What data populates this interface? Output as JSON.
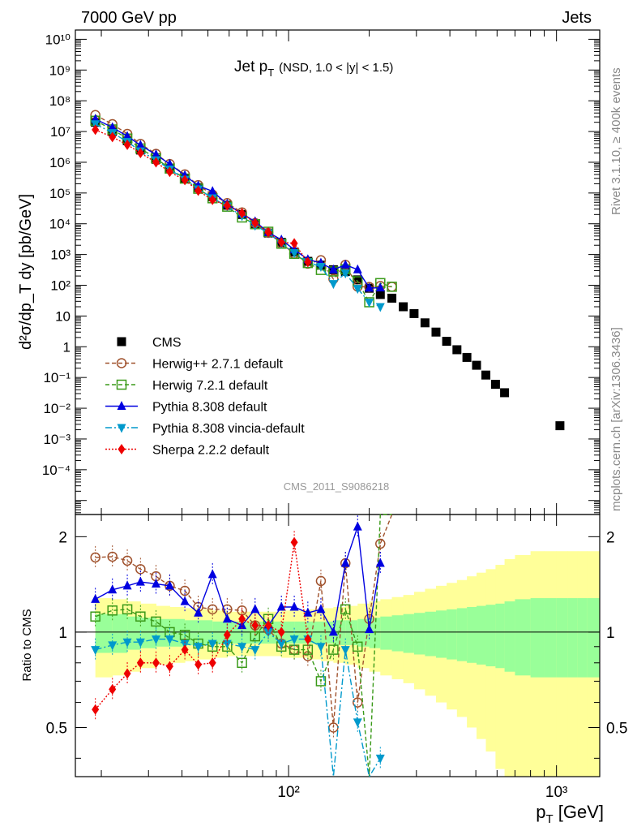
{
  "header": {
    "left": "7000 GeV pp",
    "right": "Jets"
  },
  "side_labels": {
    "rivet": "Rivet 3.1.10, ≥ 400k events",
    "mcplots": "mcplots.cern.ch [arXiv:1306.3436]"
  },
  "chart_data": {
    "type": "scatter",
    "title": "Jet p_T (NSD, 1.0 < |y| < 1.5)",
    "title_main": "Jet p",
    "title_sub": "T",
    "title_tail": "(NSD, 1.0 < |y| < 1.5)",
    "watermark": "CMS_2011_S9086218",
    "xlabel": "p_T [GeV]",
    "xlabel_main": "p",
    "xlabel_sub": "T",
    "xlabel_unit": " [GeV]",
    "ylabel": "d²σ/dp_T dy [pb/GeV]",
    "ratio_ylabel": "Ratio to CMS",
    "xscale": "log",
    "yscale": "log",
    "xlim": [
      16,
      1450
    ],
    "ylim": [
      3.5e-06,
      20000000000
    ],
    "ratio_ylim": [
      0.35,
      2.35
    ],
    "x_tick_labels": [
      "10²",
      "10³"
    ],
    "x_tick_values": [
      100,
      1000
    ],
    "y_tick_labels": [
      "10⁻⁴",
      "10⁻³",
      "10⁻²",
      "10⁻¹",
      "1",
      "10",
      "10²",
      "10³",
      "10⁴",
      "10⁵",
      "10⁶",
      "10⁷",
      "10⁸",
      "10⁹",
      "10¹⁰"
    ],
    "y_tick_values": [
      0.0001,
      0.001,
      0.01,
      0.1,
      1,
      10,
      100,
      1000,
      10000,
      100000,
      1000000,
      10000000,
      100000000,
      1000000000,
      10000000000
    ],
    "ratio_tick_labels": [
      "0.5",
      "1",
      "2"
    ],
    "ratio_tick_values": [
      0.5,
      1,
      2
    ],
    "legend_position": "bottom-left",
    "x": [
      19,
      22,
      25,
      28,
      32,
      36,
      41,
      46,
      52,
      59,
      67,
      75,
      84,
      94,
      105,
      118,
      132,
      147,
      163,
      181,
      200,
      220,
      243,
      268,
      294,
      323,
      355,
      389,
      425,
      463,
      503,
      545,
      592,
      640,
      1030
    ],
    "series": [
      {
        "name": "CMS",
        "color": "#000000",
        "marker": "square-filled",
        "values": [
          20000000,
          10000000,
          5000000,
          2500000,
          1250000,
          625000,
          300000,
          150000,
          75000,
          40000,
          20000,
          10000,
          5000,
          2500,
          1200,
          600,
          450,
          320,
          280,
          150,
          80,
          50,
          38,
          20,
          12,
          6,
          3,
          1.5,
          0.8,
          0.45,
          0.25,
          0.12,
          0.06,
          0.032,
          0.0027
        ]
      },
      {
        "name": "Herwig++ 2.7.1 default",
        "color": "#a0522d",
        "marker": "circle-open",
        "line": "dashed",
        "x": [
          19,
          22,
          25,
          28,
          32,
          36,
          41,
          46,
          52,
          59,
          67,
          75,
          84,
          94,
          105,
          118,
          132,
          147,
          163,
          181,
          200,
          220,
          243
        ],
        "ratio": [
          1.72,
          1.73,
          1.68,
          1.58,
          1.5,
          1.4,
          1.35,
          1.2,
          1.18,
          1.18,
          1.17,
          1.05,
          1.02,
          0.92,
          0.88,
          0.84,
          1.45,
          0.5,
          1.65,
          0.6,
          1.1,
          1.9,
          2.35
        ]
      },
      {
        "name": "Herwig 7.2.1 default",
        "color": "#3a9a19",
        "marker": "square-open",
        "line": "dashed",
        "x": [
          19,
          22,
          25,
          28,
          32,
          36,
          41,
          46,
          52,
          59,
          67,
          75,
          84,
          94,
          105,
          118,
          132,
          147,
          163,
          181,
          200,
          220,
          243
        ],
        "ratio": [
          1.12,
          1.17,
          1.18,
          1.12,
          1.08,
          1.0,
          0.98,
          0.92,
          0.9,
          0.9,
          0.8,
          0.97,
          1.1,
          0.9,
          0.88,
          0.88,
          0.7,
          0.88,
          1.18,
          0.9,
          0.35,
          2.35,
          2.35
        ]
      },
      {
        "name": "Pythia 8.308 default",
        "color": "#0000e0",
        "marker": "triangle-up-filled",
        "line": "solid",
        "x": [
          19,
          22,
          25,
          28,
          32,
          36,
          41,
          46,
          52,
          59,
          67,
          75,
          84,
          94,
          105,
          118,
          132,
          147,
          163,
          181,
          200,
          220
        ],
        "ratio": [
          1.27,
          1.36,
          1.4,
          1.44,
          1.42,
          1.4,
          1.25,
          1.15,
          1.52,
          1.1,
          1.05,
          1.18,
          1.05,
          1.2,
          1.2,
          1.15,
          1.18,
          1.0,
          1.65,
          2.15,
          1.02,
          1.65
        ]
      },
      {
        "name": "Pythia 8.308 vincia-default",
        "color": "#0099cc",
        "marker": "triangle-down-filled",
        "line": "dashdot",
        "x": [
          19,
          22,
          25,
          28,
          32,
          36,
          41,
          46,
          52,
          59,
          67,
          75,
          84,
          94,
          105,
          118,
          132,
          147,
          163,
          181,
          200,
          220
        ],
        "ratio": [
          0.88,
          0.91,
          0.93,
          0.93,
          0.95,
          0.95,
          0.92,
          0.9,
          0.92,
          0.92,
          0.9,
          0.88,
          1.0,
          0.92,
          0.95,
          0.95,
          0.9,
          0.35,
          0.88,
          0.52,
          0.35,
          0.4
        ]
      },
      {
        "name": "Sherpa 2.2.2 default",
        "color": "#ee0000",
        "marker": "diamond-filled",
        "line": "dotted",
        "x": [
          19,
          22,
          25,
          28,
          32,
          36,
          41,
          46,
          52,
          59,
          67,
          75,
          84,
          94,
          105,
          118
        ],
        "ratio": [
          0.57,
          0.66,
          0.74,
          0.8,
          0.8,
          0.78,
          0.88,
          0.79,
          0.8,
          0.98,
          1.1,
          1.05,
          1.05,
          1.0,
          1.92,
          0.95
        ]
      }
    ],
    "uncertainty_bands": {
      "x_edges": [
        19,
        22,
        25,
        28,
        32,
        36,
        41,
        46,
        52,
        59,
        67,
        75,
        84,
        94,
        105,
        118,
        132,
        147,
        163,
        181,
        200,
        220,
        243,
        268,
        294,
        323,
        355,
        389,
        425,
        463,
        503,
        545,
        592,
        640,
        700,
        800,
        900,
        1000,
        1100,
        1200,
        1300,
        1450
      ],
      "inner_half_width": [
        0.14,
        0.14,
        0.12,
        0.11,
        0.1,
        0.1,
        0.09,
        0.09,
        0.08,
        0.08,
        0.08,
        0.08,
        0.08,
        0.08,
        0.08,
        0.08,
        0.08,
        0.09,
        0.09,
        0.1,
        0.11,
        0.12,
        0.13,
        0.14,
        0.15,
        0.16,
        0.17,
        0.18,
        0.19,
        0.2,
        0.21,
        0.22,
        0.23,
        0.25,
        0.27,
        0.28,
        0.28,
        0.28,
        0.28,
        0.28,
        0.28
      ],
      "outer_half_width": [
        0.28,
        0.27,
        0.25,
        0.23,
        0.21,
        0.2,
        0.19,
        0.18,
        0.17,
        0.16,
        0.16,
        0.16,
        0.16,
        0.17,
        0.17,
        0.18,
        0.19,
        0.2,
        0.21,
        0.23,
        0.25,
        0.27,
        0.29,
        0.31,
        0.34,
        0.37,
        0.4,
        0.43,
        0.46,
        0.5,
        0.54,
        0.58,
        0.63,
        0.7,
        0.75,
        0.8,
        0.8,
        0.8,
        0.8,
        0.8,
        0.8
      ],
      "inner_color": "#99ff99",
      "outer_color": "#ffff99"
    }
  }
}
